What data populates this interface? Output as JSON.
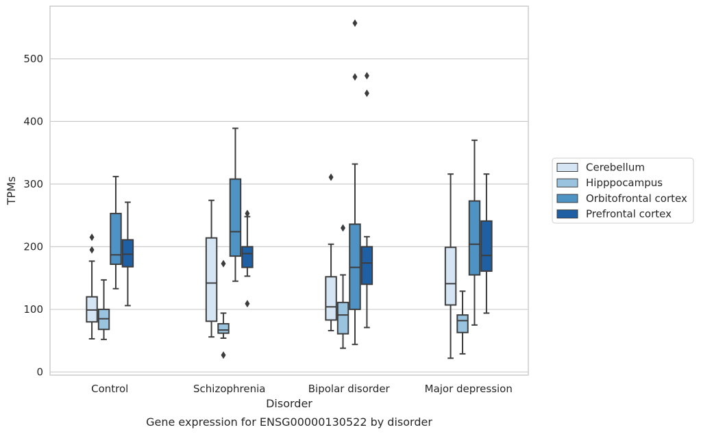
{
  "chart_data": {
    "type": "boxplot",
    "caption": "Gene expression for ENSG00000130522 by disorder",
    "xlabel": "Disorder",
    "ylabel": "TPMs",
    "ylim": [
      -5,
      584
    ],
    "yticks": [
      0,
      100,
      200,
      300,
      400,
      500
    ],
    "grid": "horizontal",
    "legend_position": "right",
    "categories": [
      "Control",
      "Schizophrenia",
      "Bipolar disorder",
      "Major depression"
    ],
    "series": [
      {
        "name": "Cerebellum",
        "color": "#d5e5f3",
        "boxes": [
          {
            "whisker_low": 53,
            "q1": 80,
            "median": 99,
            "q3": 120,
            "whisker_high": 177,
            "outliers": [
              195,
              215
            ]
          },
          {
            "whisker_low": 56,
            "q1": 81,
            "median": 142,
            "q3": 214,
            "whisker_high": 274,
            "outliers": []
          },
          {
            "whisker_low": 66,
            "q1": 83,
            "median": 104,
            "q3": 152,
            "whisker_high": 204,
            "outliers": [
              311
            ]
          },
          {
            "whisker_low": 22,
            "q1": 107,
            "median": 141,
            "q3": 199,
            "whisker_high": 316,
            "outliers": []
          }
        ]
      },
      {
        "name": "Hipppocampus",
        "color": "#99c3df",
        "boxes": [
          {
            "whisker_low": 52,
            "q1": 68,
            "median": 85,
            "q3": 100,
            "whisker_high": 147,
            "outliers": []
          },
          {
            "whisker_low": 54,
            "q1": 62,
            "median": 67,
            "q3": 77,
            "whisker_high": 94,
            "outliers": [
              27,
              173
            ]
          },
          {
            "whisker_low": 38,
            "q1": 61,
            "median": 91,
            "q3": 111,
            "whisker_high": 155,
            "outliers": [
              230
            ]
          },
          {
            "whisker_low": 29,
            "q1": 63,
            "median": 82,
            "q3": 91,
            "whisker_high": 129,
            "outliers": []
          }
        ]
      },
      {
        "name": "Orbitofrontal cortex",
        "color": "#4f93c4",
        "boxes": [
          {
            "whisker_low": 133,
            "q1": 172,
            "median": 187,
            "q3": 253,
            "whisker_high": 312,
            "outliers": []
          },
          {
            "whisker_low": 145,
            "q1": 185,
            "median": 224,
            "q3": 308,
            "whisker_high": 389,
            "outliers": []
          },
          {
            "whisker_low": 44,
            "q1": 100,
            "median": 167,
            "q3": 236,
            "whisker_high": 332,
            "outliers": [
              471,
              557
            ]
          },
          {
            "whisker_low": 75,
            "q1": 155,
            "median": 204,
            "q3": 273,
            "whisker_high": 370,
            "outliers": []
          }
        ]
      },
      {
        "name": "Prefrontal cortex",
        "color": "#1f5fa3",
        "boxes": [
          {
            "whisker_low": 106,
            "q1": 168,
            "median": 188,
            "q3": 211,
            "whisker_high": 271,
            "outliers": []
          },
          {
            "whisker_low": 153,
            "q1": 167,
            "median": 189,
            "q3": 200,
            "whisker_high": 248,
            "outliers": [
              109,
              253
            ]
          },
          {
            "whisker_low": 71,
            "q1": 140,
            "median": 174,
            "q3": 200,
            "whisker_high": 216,
            "outliers": [
              445,
              473
            ]
          },
          {
            "whisker_low": 94,
            "q1": 161,
            "median": 186,
            "q3": 241,
            "whisker_high": 316,
            "outliers": []
          }
        ]
      }
    ]
  }
}
